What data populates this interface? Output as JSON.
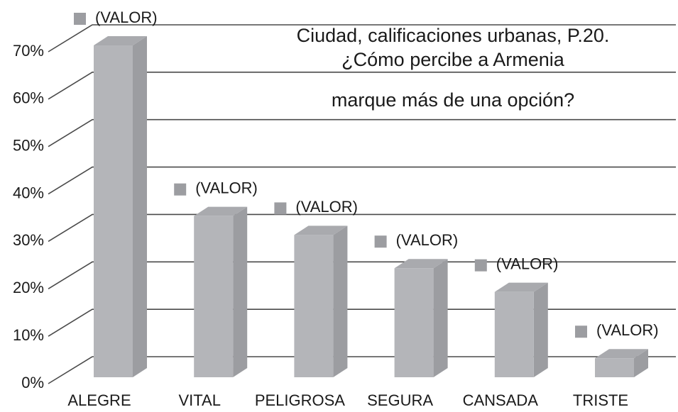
{
  "chart_data": {
    "type": "bar3d",
    "title": [
      "Ciudad, calificaciones urbanas, P.20.",
      "¿Cómo percibe a Armenia",
      "marque más de una opción?"
    ],
    "categories": [
      "ALEGRE",
      "VITAL",
      "PELIGROSA",
      "SEGURA",
      "CANSADA",
      "TRISTE"
    ],
    "values": [
      70,
      34,
      30,
      23,
      18,
      4
    ],
    "value_labels": [
      "(VALOR)",
      "(VALOR)",
      "(VALOR)",
      "(VALOR)",
      "(VALOR)",
      "(VALOR)"
    ],
    "color": "#b4b5b9",
    "ylim": [
      0,
      70
    ],
    "yticks": [
      {
        "value": 0,
        "label": "0%"
      },
      {
        "value": 10,
        "label": "10%"
      },
      {
        "value": 20,
        "label": "20%"
      },
      {
        "value": 30,
        "label": "30%"
      },
      {
        "value": 40,
        "label": "40%"
      },
      {
        "value": 50,
        "label": "50%"
      },
      {
        "value": 60,
        "label": "60%"
      },
      {
        "value": 70,
        "label": "70%"
      }
    ],
    "grid": true
  }
}
